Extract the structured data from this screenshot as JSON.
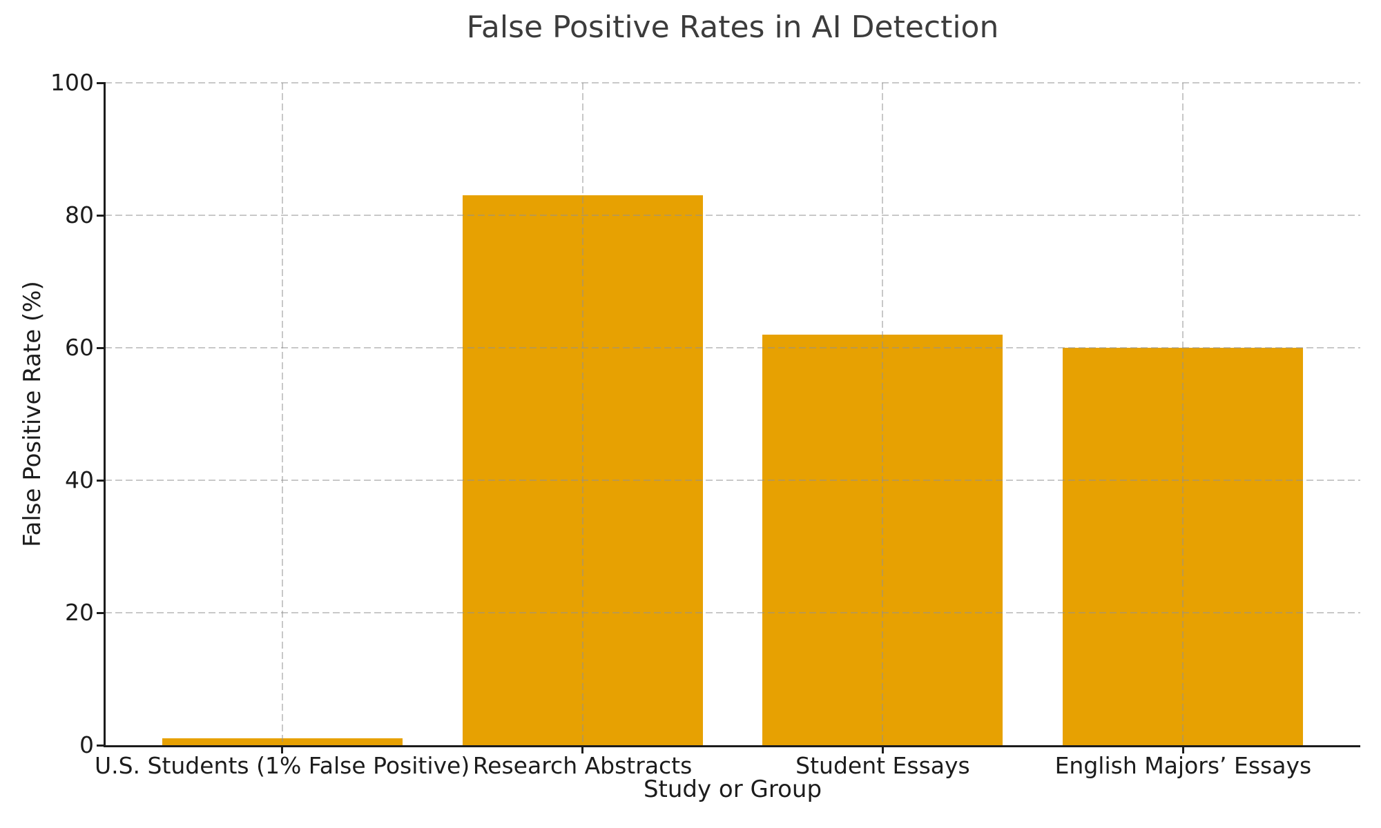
{
  "chart_data": {
    "type": "bar",
    "title": "False Positive Rates in AI Detection",
    "xlabel": "Study or Group",
    "ylabel": "False Positive Rate (%)",
    "categories": [
      "U.S. Students (1% False Positive)",
      "Research Abstracts",
      "Student Essays",
      "English Majors’ Essays"
    ],
    "values": [
      1,
      83,
      62,
      60
    ],
    "ylim": [
      0,
      100
    ],
    "yticks": [
      0,
      20,
      40,
      60,
      80,
      100
    ],
    "bar_color": "#E7A102",
    "grid": {
      "visible": true,
      "style": "dashed",
      "color": "#d2d2d2",
      "over_bars": true
    },
    "layout": {
      "xlim": [
        -0.59,
        3.59
      ],
      "bar_width_units": 0.8,
      "legend": "none",
      "spines": [
        "left",
        "bottom"
      ]
    }
  }
}
